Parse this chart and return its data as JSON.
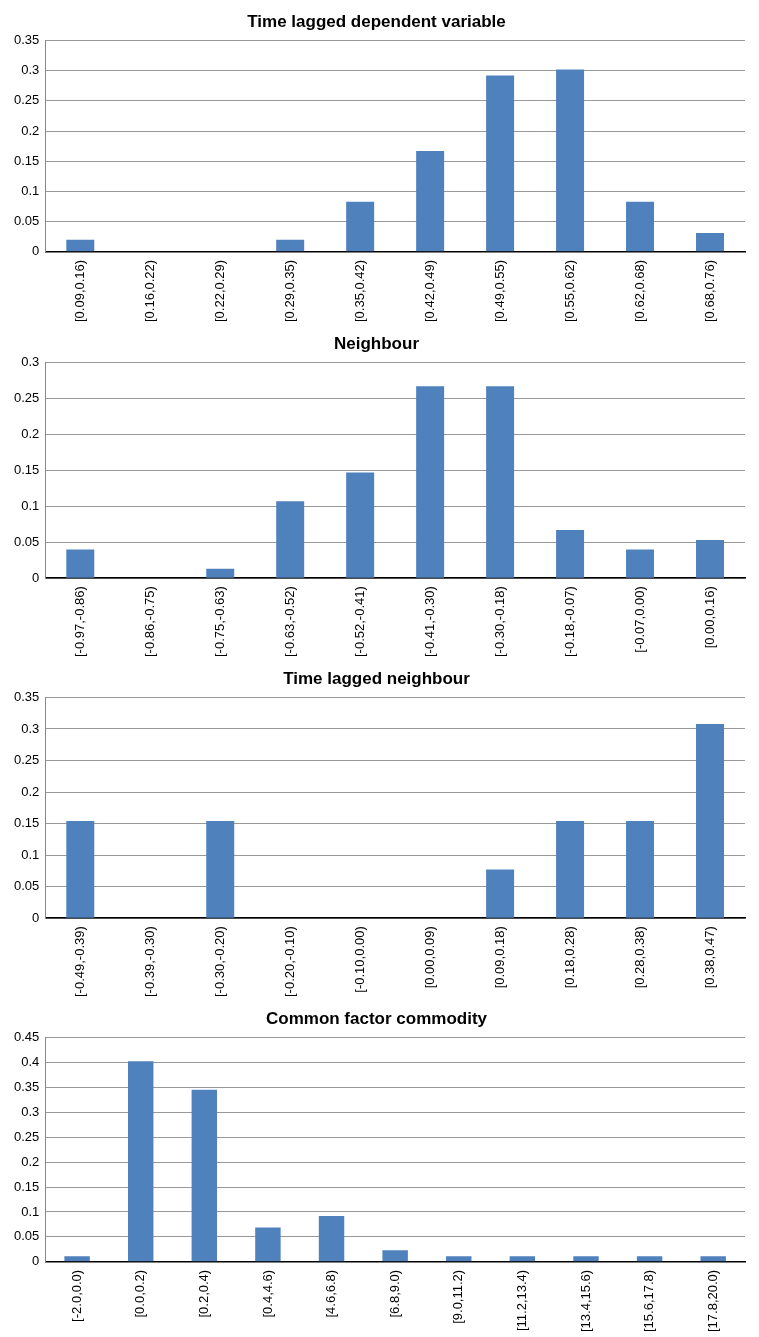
{
  "chart_data": [
    {
      "type": "bar",
      "title": "Time lagged dependent variable",
      "categories": [
        "[0.09,0.16)",
        "[0.16,0.22)",
        "[0.22,0.29)",
        "[0.29,0.35)",
        "[0.35,0.42)",
        "[0.42,0.49)",
        "[0.49,0.55)",
        "[0.55,0.62)",
        "[0.62,0.68)",
        "[0.68,0.76)"
      ],
      "values": [
        0.02,
        0,
        0,
        0.02,
        0.083,
        0.167,
        0.292,
        0.302,
        0.083,
        0.031
      ],
      "color": "#4f81bd",
      "ylim": [
        0,
        0.35
      ],
      "yticks": [
        0,
        0.05,
        0.1,
        0.15,
        0.2,
        0.25,
        0.3,
        0.35
      ],
      "grid": "y"
    },
    {
      "type": "bar",
      "title": "Neighbour",
      "categories": [
        "[-0.97,-0.86)",
        "[-0.86,-0.75)",
        "[-0.75,-0.63)",
        "[-0.63,-0.52)",
        "[-0.52,-0.41)",
        "[-0.41,-0.30)",
        "[-0.30,-0.18)",
        "[-0.18,-0.07)",
        "[-0.07,0.00)",
        "[0.00,0.16)"
      ],
      "values": [
        0.04,
        0,
        0.013,
        0.107,
        0.147,
        0.267,
        0.267,
        0.067,
        0.04,
        0.053
      ],
      "color": "#4f81bd",
      "ylim": [
        0,
        0.3
      ],
      "yticks": [
        0,
        0.05,
        0.1,
        0.15,
        0.2,
        0.25,
        0.3
      ],
      "grid": "y"
    },
    {
      "type": "bar",
      "title": "Time lagged neighbour",
      "categories": [
        "[-0.49,-0.39)",
        "[-0.39,-0.30)",
        "[-0.30,-0.20)",
        "[-0.20,-0.10)",
        "[-0.10,0.00)",
        "[0.00,0.09)",
        "[0.09,0.18)",
        "[0.18,0.28)",
        "[0.28,0.38)",
        "[0.38,0.47)"
      ],
      "values": [
        0.154,
        0,
        0.154,
        0,
        0,
        0,
        0.077,
        0.154,
        0.154,
        0.308
      ],
      "color": "#4f81bd",
      "ylim": [
        0,
        0.35
      ],
      "yticks": [
        0,
        0.05,
        0.1,
        0.15,
        0.2,
        0.25,
        0.3,
        0.35
      ],
      "grid": "y"
    },
    {
      "type": "bar",
      "title": "Common factor commodity",
      "categories": [
        "[-2.0,0.0)",
        "[0.0,0.2)",
        "[0.2,0.4)",
        "[0.4,4.6)",
        "[4.6,6.8)",
        "[6.8,9.0)",
        "[9.0,11.2)",
        "[11.2,13.4)",
        "[13.4,15.6)",
        "[15.6,17.8)",
        "[17.8,20.0)"
      ],
      "values": [
        0.011,
        0.402,
        0.345,
        0.069,
        0.092,
        0.023,
        0.011,
        0.011,
        0.011,
        0.011,
        0.011
      ],
      "color": "#4f81bd",
      "ylim": [
        0,
        0.45
      ],
      "yticks": [
        0,
        0.05,
        0.1,
        0.15,
        0.2,
        0.25,
        0.3,
        0.35,
        0.4,
        0.45
      ],
      "grid": "y"
    }
  ]
}
